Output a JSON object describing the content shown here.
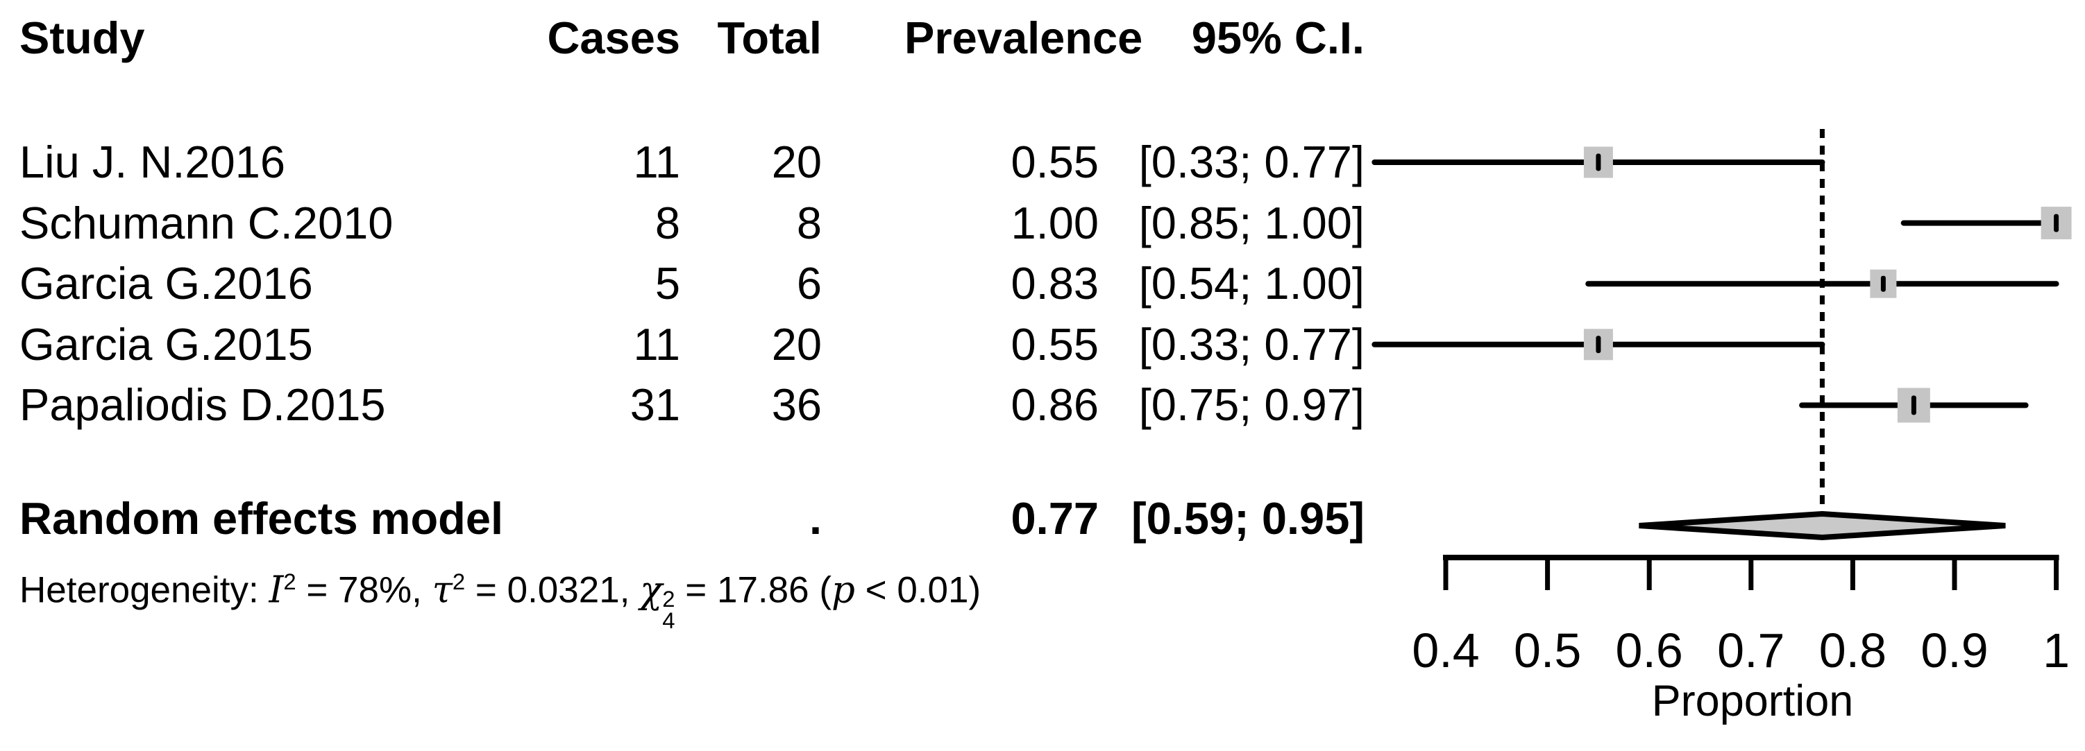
{
  "table": {
    "headers": {
      "study": "Study",
      "cases": "Cases",
      "total": "Total",
      "prevalence": "Prevalence",
      "ci": "95% C.I."
    },
    "rows": [
      {
        "study": "Liu J. N.2016",
        "cases": "11",
        "total": "20",
        "prevalence": "0.55",
        "ci": "[0.33; 0.77]"
      },
      {
        "study": "Schumann C.2010",
        "cases": "8",
        "total": "8",
        "prevalence": "1.00",
        "ci": "[0.85; 1.00]"
      },
      {
        "study": "Garcia G.2016",
        "cases": "5",
        "total": "6",
        "prevalence": "0.83",
        "ci": "[0.54; 1.00]"
      },
      {
        "study": "Garcia G.2015",
        "cases": "11",
        "total": "20",
        "prevalence": "0.55",
        "ci": "[0.33; 0.77]"
      },
      {
        "study": "Papaliodis D.2015",
        "cases": "31",
        "total": "36",
        "prevalence": "0.86",
        "ci": "[0.75; 0.97]"
      }
    ],
    "pooled": {
      "label": "Random effects model",
      "total_placeholder": ".",
      "prevalence": "0.77",
      "ci": "[0.59; 0.95]"
    }
  },
  "heterogeneity": {
    "parts": [
      {
        "text": "Heterogeneity: "
      },
      {
        "text": "I",
        "style": "math"
      },
      {
        "text": "2",
        "style": "sup"
      },
      {
        "text": " = 78%, "
      },
      {
        "text": "τ",
        "style": "math"
      },
      {
        "text": "2",
        "style": "sup"
      },
      {
        "text": " = 0.0321, "
      },
      {
        "base": "χ",
        "sup": "2",
        "sub": "4"
      },
      {
        "text": " = 17.86 ("
      },
      {
        "text": "p",
        "style": "math"
      },
      {
        "text": " < 0.01)"
      }
    ]
  },
  "chart_data": {
    "type": "forest",
    "xlabel": "Proportion",
    "xlim": [
      0.4,
      1.0
    ],
    "x_ticks": [
      0.4,
      0.5,
      0.6,
      0.7,
      0.8,
      0.9,
      1
    ],
    "x_tick_labels": [
      "0.4",
      "0.5",
      "0.6",
      "0.7",
      "0.8",
      "0.9",
      "1"
    ],
    "reference_line": 0.77,
    "studies": [
      {
        "label": "Liu J. N.2016",
        "cases": 11,
        "total": 20,
        "estimate": 0.55,
        "ci_low": 0.33,
        "ci_high": 0.77,
        "marker_size": 45
      },
      {
        "label": "Schumann C.2010",
        "cases": 8,
        "total": 8,
        "estimate": 1.0,
        "ci_low": 0.85,
        "ci_high": 1.0,
        "marker_size": 47
      },
      {
        "label": "Garcia G.2016",
        "cases": 5,
        "total": 6,
        "estimate": 0.83,
        "ci_low": 0.54,
        "ci_high": 1.0,
        "marker_size": 41
      },
      {
        "label": "Garcia G.2015",
        "cases": 11,
        "total": 20,
        "estimate": 0.55,
        "ci_low": 0.33,
        "ci_high": 0.77,
        "marker_size": 45
      },
      {
        "label": "Papaliodis D.2015",
        "cases": 31,
        "total": 36,
        "estimate": 0.86,
        "ci_low": 0.75,
        "ci_high": 0.97,
        "marker_size": 50
      }
    ],
    "pooled": {
      "label": "Random effects model",
      "estimate": 0.77,
      "ci_low": 0.59,
      "ci_high": 0.95
    },
    "colors": {
      "marker_fill": "#c5c5c5",
      "diamond_fill": "#c9c9c9",
      "line": "#000000",
      "reference_line": "#000000"
    }
  }
}
